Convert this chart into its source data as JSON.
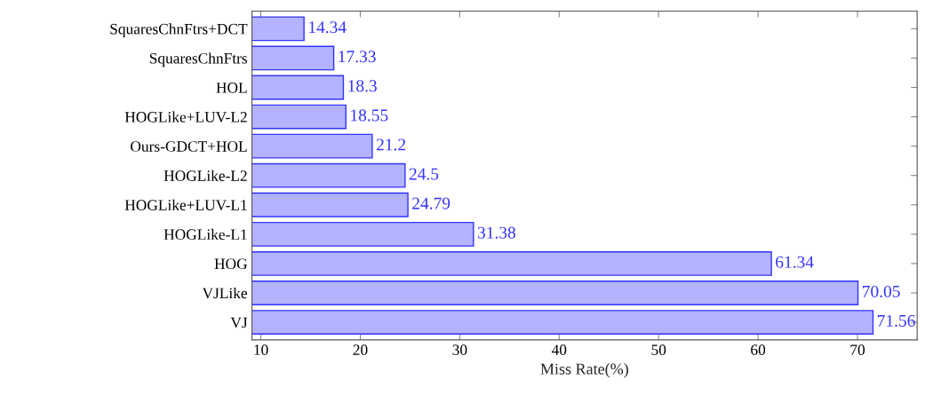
{
  "chart_data": {
    "type": "bar",
    "orientation": "horizontal",
    "xlabel": "Miss Rate(%)",
    "categories": [
      "SquaresChnFtrs+DCT",
      "SquaresChnFtrs",
      "HOL",
      "HOGLike+LUV-L2",
      "Ours-GDCT+HOL",
      "HOGLike-L2",
      "HOGLike+LUV-L1",
      "HOGLike-L1",
      "HOG",
      "VJLike",
      "VJ"
    ],
    "values": [
      14.34,
      17.33,
      18.3,
      18.55,
      21.2,
      24.5,
      24.79,
      31.38,
      61.34,
      70.05,
      71.56
    ],
    "color": "#b3b3ff",
    "data_labels": true,
    "xlim": [
      9.1,
      76
    ],
    "xticks": [
      10,
      20,
      30,
      40,
      50,
      60,
      70
    ],
    "grid": false,
    "legend": false
  }
}
